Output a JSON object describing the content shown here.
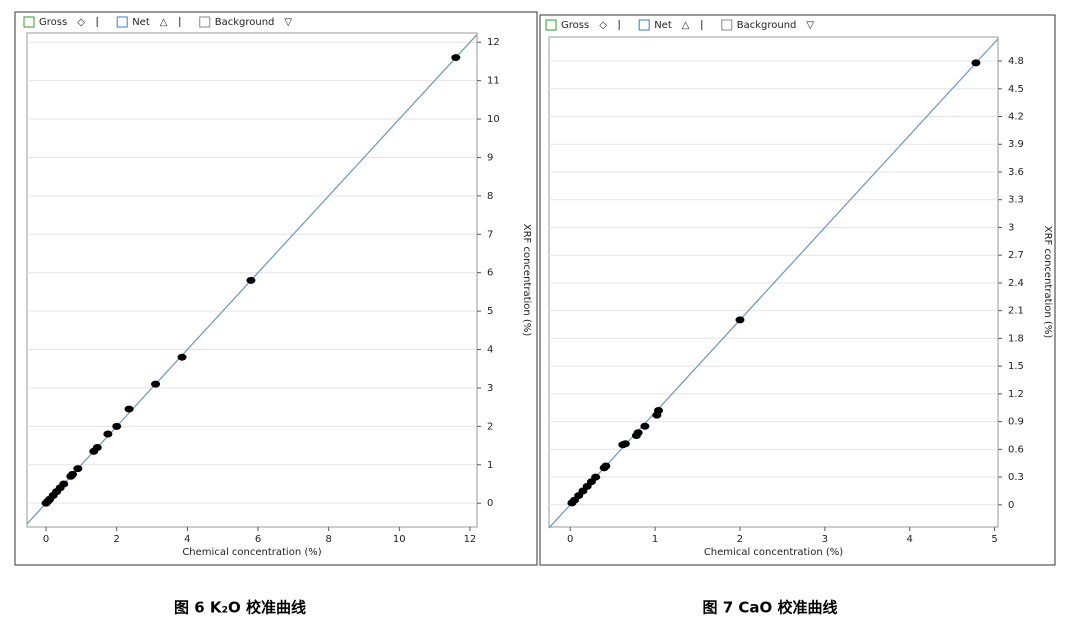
{
  "chart_data": [
    {
      "type": "scatter",
      "caption": "图 6 K₂O 校准曲线",
      "legend": [
        {
          "name": "Gross",
          "symbol": "◇"
        },
        {
          "name": "Net",
          "symbol": "△"
        },
        {
          "name": "Background",
          "symbol": "▽"
        }
      ],
      "xlabel": "Chemical concentration (%)",
      "ylabel": "XRF concentration (%)",
      "x": [
        0,
        0.05,
        0.1,
        0.2,
        0.3,
        0.4,
        0.5,
        0.7,
        0.75,
        0.9,
        1.35,
        1.45,
        1.75,
        2.0,
        2.35,
        3.1,
        3.85,
        5.8,
        11.6
      ],
      "values": [
        0,
        0.05,
        0.1,
        0.2,
        0.3,
        0.4,
        0.5,
        0.7,
        0.75,
        0.9,
        1.35,
        1.45,
        1.8,
        2.0,
        2.45,
        3.1,
        3.8,
        5.8,
        11.6
      ],
      "line": {
        "x": [
          -0.54,
          12.2
        ],
        "y": [
          -0.54,
          12.2
        ]
      },
      "xlim": [
        -0.54,
        12.2
      ],
      "ylim": [
        -0.62,
        12.24
      ],
      "xticks": [
        0,
        2,
        4,
        6,
        8,
        10,
        12
      ],
      "yticks": [
        0,
        1,
        2,
        3,
        4,
        5,
        6,
        7,
        8,
        9,
        10,
        11,
        12
      ],
      "grid": true,
      "color": "#000000",
      "line_color": "#6a96c0"
    },
    {
      "type": "scatter",
      "caption": "图 7 CaO 校准曲线",
      "legend": [
        {
          "name": "Gross",
          "symbol": "◇"
        },
        {
          "name": "Net",
          "symbol": "△"
        },
        {
          "name": "Background",
          "symbol": "▽"
        }
      ],
      "xlabel": "Chemical concentration (%)",
      "ylabel": "XRF concentration (%)",
      "x": [
        0.02,
        0.05,
        0.1,
        0.15,
        0.2,
        0.25,
        0.3,
        0.4,
        0.42,
        0.62,
        0.65,
        0.78,
        0.8,
        0.88,
        1.02,
        1.04,
        2.0,
        4.78
      ],
      "values": [
        0.02,
        0.05,
        0.1,
        0.15,
        0.2,
        0.25,
        0.3,
        0.4,
        0.42,
        0.65,
        0.66,
        0.75,
        0.78,
        0.85,
        0.97,
        1.02,
        2.0,
        4.78
      ],
      "line": {
        "x": [
          -0.25,
          5.04
        ],
        "y": [
          -0.25,
          5.04
        ]
      },
      "xlim": [
        -0.25,
        5.04
      ],
      "ylim": [
        -0.24,
        5.06
      ],
      "xticks": [
        0,
        1,
        2,
        3,
        4,
        5
      ],
      "yticks": [
        0,
        0.3,
        0.6,
        0.9,
        1.2,
        1.5,
        1.8,
        2.1,
        2.4,
        2.7,
        3,
        3.3,
        3.6,
        3.9,
        4.2,
        4.5,
        4.8
      ],
      "grid": true,
      "color": "#000000",
      "line_color": "#6a96c0"
    }
  ]
}
